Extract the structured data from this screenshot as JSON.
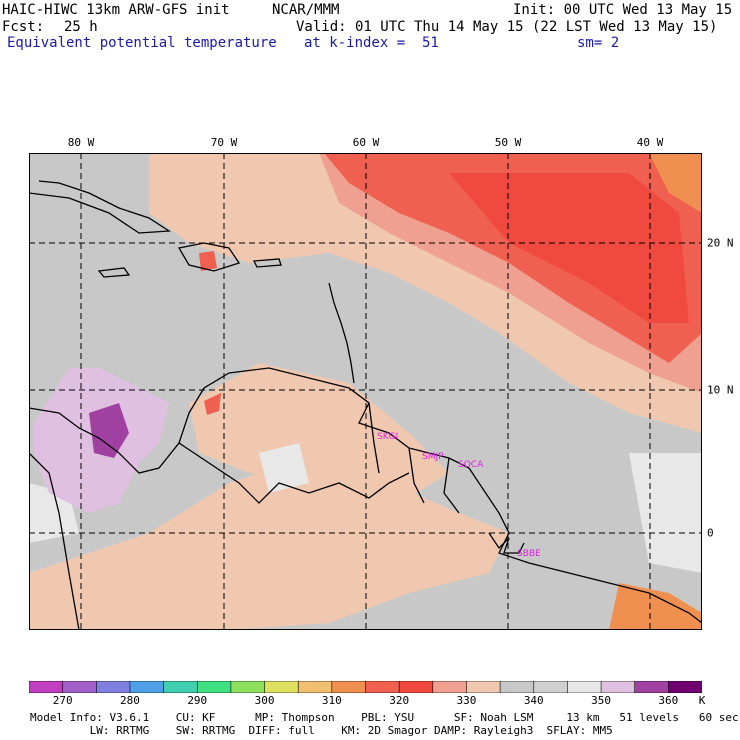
{
  "header": {
    "model": "HAIC-HIWC 13km ARW-GFS init",
    "org": "NCAR/MMM",
    "init": "Init: 00 UTC Wed 13 May 15",
    "fcst_label": "Fcst:",
    "fcst_value": "25 h",
    "valid": "Valid: 01 UTC Thu 14 May 15 (22 LST Wed 13 May 15)",
    "field": "Equivalent potential temperature",
    "level": "at k-index =  51",
    "smoothing": "sm= 2"
  },
  "axes": {
    "lon_labels": [
      "80 W",
      "70 W",
      "60 W",
      "50 W",
      "40 W"
    ],
    "lat_labels": [
      "20 N",
      "10 N",
      "0"
    ]
  },
  "stations": [
    "SKGI",
    "SMJP",
    "SOCA",
    "SBBE"
  ],
  "colorbar": {
    "labels": [
      "270",
      "280",
      "290",
      "300",
      "310",
      "320",
      "330",
      "340",
      "350",
      "360",
      "K"
    ],
    "colors": [
      "#c040c0",
      "#a060c8",
      "#8080e0",
      "#50a0e8",
      "#40d0b0",
      "#40e080",
      "#90e060",
      "#e0e060",
      "#f0c070",
      "#f09050",
      "#f06050",
      "#f04a40",
      "#f0a090",
      "#f0c8b0",
      "#c8c8c8",
      "#d0d0d0",
      "#e8e8e8",
      "#e0c0e0",
      "#a040a0",
      "#700070"
    ]
  },
  "footer": {
    "line1": "Model Info: V3.6.1    CU: KF      MP: Thompson    PBL: YSU      SF: Noah LSM     13 km   51 levels   60 sec",
    "line2": "         LW: RRTMG    SW: RRTMG  DIFF: full    KM: 2D Smagor DAMP: Rayleigh3  SFLAY: MM5"
  }
}
